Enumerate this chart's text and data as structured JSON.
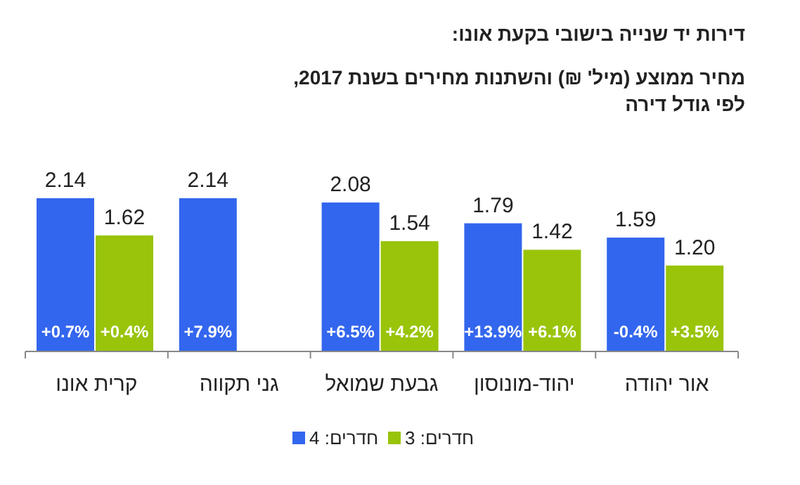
{
  "chart_data": {
    "type": "bar",
    "title": "דירות יד שנייה בישובי בקעת אונו:",
    "subtitle": "מחיר ממוצע (מיל' ₪) והשתנות מחירים בשנת 2017, לפי גודל דירה",
    "categories": [
      "קרית אונו",
      "גני תקווה",
      "גבעת שמואל",
      "יהוד-מונוסון",
      "אור יהודה"
    ],
    "series": [
      {
        "name": "חדרים: 4",
        "color": "#3366ee",
        "values": [
          2.14,
          2.14,
          2.08,
          1.79,
          1.59
        ],
        "value_labels": [
          "2.14",
          "2.14",
          "2.08",
          "1.79",
          "1.59"
        ]
      },
      {
        "name": "חדרים: 3",
        "color": "#99c40a",
        "values": [
          1.62,
          null,
          1.54,
          1.42,
          1.2
        ],
        "value_labels": [
          "1.62",
          null,
          "1.54",
          "1.42",
          "1.20"
        ]
      }
    ],
    "legend": "bottom",
    "annotations": [
      "+0.7%",
      "+0.4%",
      "+7.9%",
      "+6.5%",
      "+4.2%",
      "+13.9%",
      "+6.1%",
      "-0.4%",
      "+3.5%"
    ]
  }
}
